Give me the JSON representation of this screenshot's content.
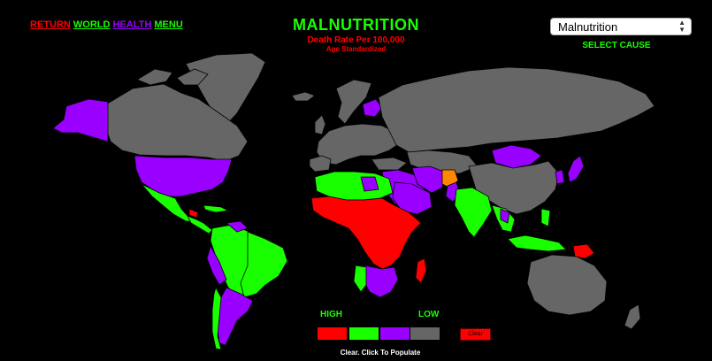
{
  "nav": {
    "return": {
      "label": "RETURN",
      "color": "#ff0000"
    },
    "world": {
      "label": "WORLD",
      "color": "#19ff00"
    },
    "health": {
      "label": "HEALTH",
      "color": "#9900ff"
    },
    "menu": {
      "label": "MENU",
      "color": "#19ff00"
    }
  },
  "header": {
    "title": "MALNUTRITION",
    "subtitle": "Death Rate Per 100,000",
    "subnote": "Age Standardized"
  },
  "cause_select": {
    "value": "Malnutrition",
    "label": "SELECT CAUSE"
  },
  "legend": {
    "high_label": "HIGH",
    "low_label": "LOW",
    "colors": [
      "#ff0000",
      "#19ff00",
      "#9900ff",
      "#666666"
    ],
    "clear_label": "Clear"
  },
  "status": "Clear. Click To Populate",
  "map_colors": {
    "high": "#ff0000",
    "mid_high": "#19ff00",
    "mid_low": "#9900ff",
    "low": "#666666",
    "ocean": "#000000"
  }
}
